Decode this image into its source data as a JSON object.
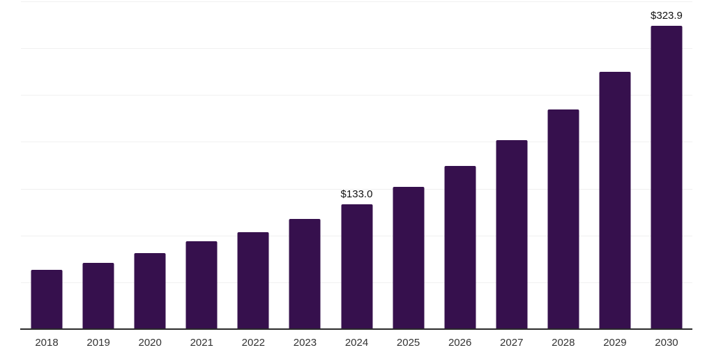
{
  "chart_data": {
    "type": "bar",
    "title": "",
    "xlabel": "",
    "ylabel": "",
    "categories": [
      "2018",
      "2019",
      "2020",
      "2021",
      "2022",
      "2023",
      "2024",
      "2025",
      "2026",
      "2027",
      "2028",
      "2029",
      "2030"
    ],
    "values": [
      63.5,
      71.0,
      81.4,
      94.0,
      103.5,
      117.6,
      133.0,
      151.8,
      174.0,
      202.0,
      234.8,
      274.8,
      323.9
    ],
    "point_labels": [
      "",
      "",
      "",
      "",
      "",
      "",
      "$133.0",
      "",
      "",
      "",
      "",
      "",
      "$323.9"
    ],
    "ylim": [
      0,
      350
    ],
    "gridline_step": 50,
    "grid": "horizontal-only",
    "legend_position": "none",
    "y_axis_tick_labels_visible": false,
    "colors": {
      "bar": "#36104D",
      "axis_line": "#2B2B2B",
      "gridline": "#F0F0F0",
      "tick_label": "#333333",
      "data_label": "#111111",
      "background": "#FFFFFF"
    }
  }
}
